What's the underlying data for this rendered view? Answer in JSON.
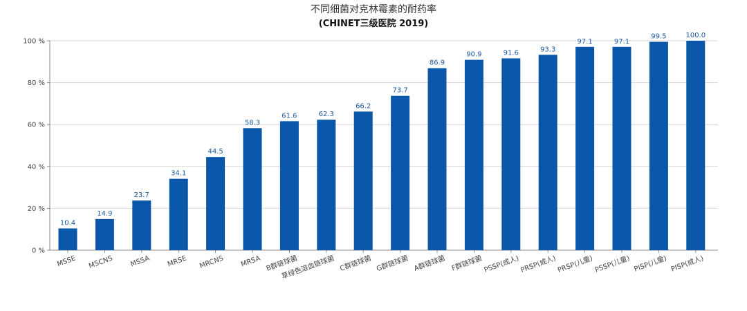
{
  "chart_data": {
    "type": "bar",
    "title": "不同细菌对克林霉素的耐药率",
    "subtitle": "(CHINET三级医院 2019)",
    "categories": [
      "MSSE",
      "MSCNS",
      "MSSA",
      "MRSE",
      "MRCNS",
      "MRSA",
      "B群链球菌",
      "草绿色溶血链球菌",
      "C群链球菌",
      "G群链球菌",
      "A群链球菌",
      "F群链球菌",
      "PSSP(成人)",
      "PRSP(成人)",
      "PRSP(儿童)",
      "PSSP(儿童)",
      "PISP(儿童)",
      "PISP(成人)"
    ],
    "values": [
      10.4,
      14.9,
      23.7,
      34.1,
      44.5,
      58.3,
      61.6,
      62.3,
      66.2,
      73.7,
      86.9,
      90.9,
      91.6,
      93.3,
      97.1,
      97.1,
      99.5,
      100.0
    ],
    "data_labels": [
      "10.4",
      "14.9",
      "23.7",
      "34.1",
      "44.5",
      "58.3",
      "61.6",
      "62.3",
      "66.2",
      "73.7",
      "86.9",
      "90.9",
      "91.6",
      "93.3",
      "97.1",
      "97.1",
      "99.5",
      "100.0"
    ],
    "yticks": [
      0,
      20,
      40,
      60,
      80,
      100
    ],
    "ytick_labels": [
      "0 %",
      "20 %",
      "40 %",
      "60 %",
      "80 %",
      "100 %"
    ],
    "ylim": [
      0,
      100
    ],
    "grid": true,
    "bar_color": "#0a56a8",
    "label_color": "#1a5aa0"
  }
}
